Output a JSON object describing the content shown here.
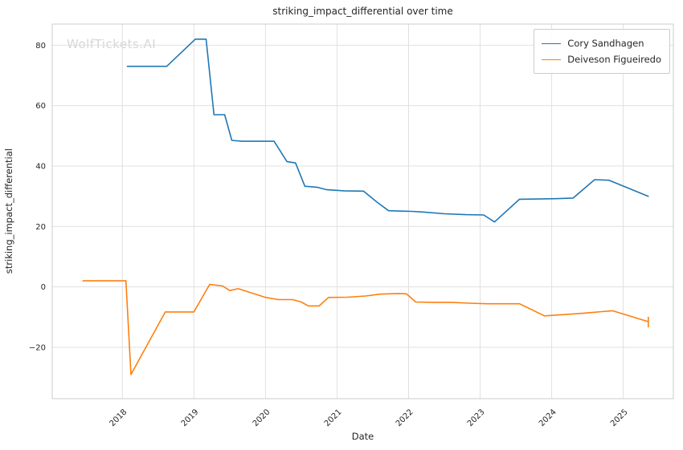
{
  "watermark": "WolfTickets.AI",
  "chart_data": {
    "type": "line",
    "title": "striking_impact_differential over time",
    "xlabel": "Date",
    "ylabel": "striking_impact_differential",
    "xlim": [
      2017.02,
      2025.7
    ],
    "ylim": [
      -37,
      87
    ],
    "xticks": [
      2018,
      2019,
      2020,
      2021,
      2022,
      2023,
      2024,
      2025
    ],
    "yticks": [
      -20,
      0,
      20,
      40,
      60,
      80
    ],
    "grid": true,
    "legend_position": "upper right",
    "colors": {
      "grid": "#e0e0e0",
      "spine": "#cccccc",
      "tick_text": "#262626",
      "background": "#ffffff"
    },
    "series": [
      {
        "name": "Cory Sandhagen",
        "color": "#1f77b4",
        "points": [
          [
            2018.07,
            73
          ],
          [
            2018.62,
            73
          ],
          [
            2019.02,
            82
          ],
          [
            2019.17,
            82
          ],
          [
            2019.28,
            57
          ],
          [
            2019.43,
            57
          ],
          [
            2019.53,
            48.5
          ],
          [
            2019.67,
            48.2
          ],
          [
            2020.12,
            48.2
          ],
          [
            2020.3,
            41.5
          ],
          [
            2020.42,
            41
          ],
          [
            2020.55,
            33.3
          ],
          [
            2020.72,
            33
          ],
          [
            2020.85,
            32.2
          ],
          [
            2021.1,
            31.8
          ],
          [
            2021.37,
            31.7
          ],
          [
            2021.55,
            28.2
          ],
          [
            2021.72,
            25.2
          ],
          [
            2022.05,
            25
          ],
          [
            2022.2,
            24.8
          ],
          [
            2022.5,
            24.2
          ],
          [
            2022.8,
            23.9
          ],
          [
            2023.05,
            23.8
          ],
          [
            2023.2,
            21.5
          ],
          [
            2023.55,
            29
          ],
          [
            2024.05,
            29.2
          ],
          [
            2024.3,
            29.4
          ],
          [
            2024.6,
            35.5
          ],
          [
            2024.8,
            35.3
          ],
          [
            2025.35,
            30
          ]
        ]
      },
      {
        "name": "Deiveson Figueiredo",
        "color": "#ff7f0e",
        "points": [
          [
            2017.45,
            2
          ],
          [
            2018.05,
            2
          ],
          [
            2018.12,
            -29
          ],
          [
            2018.6,
            -8.3
          ],
          [
            2019.0,
            -8.3
          ],
          [
            2019.22,
            0.8
          ],
          [
            2019.4,
            0.3
          ],
          [
            2019.5,
            -1.2
          ],
          [
            2019.62,
            -0.6
          ],
          [
            2020.0,
            -3.5
          ],
          [
            2020.18,
            -4.2
          ],
          [
            2020.38,
            -4.2
          ],
          [
            2020.5,
            -5
          ],
          [
            2020.6,
            -6.3
          ],
          [
            2020.75,
            -6.3
          ],
          [
            2020.88,
            -3.5
          ],
          [
            2021.15,
            -3.4
          ],
          [
            2021.4,
            -3
          ],
          [
            2021.6,
            -2.4
          ],
          [
            2021.85,
            -2.2
          ],
          [
            2021.97,
            -2.3
          ],
          [
            2022.1,
            -5
          ],
          [
            2022.35,
            -5.1
          ],
          [
            2022.6,
            -5.1
          ],
          [
            2022.85,
            -5.4
          ],
          [
            2023.1,
            -5.6
          ],
          [
            2023.35,
            -5.6
          ],
          [
            2023.55,
            -5.6
          ],
          [
            2023.9,
            -9.6
          ],
          [
            2024.15,
            -9.2
          ],
          [
            2024.45,
            -8.7
          ],
          [
            2024.7,
            -8.2
          ],
          [
            2024.85,
            -7.9
          ],
          [
            2025.35,
            -11.5
          ]
        ],
        "end_errorbar": {
          "x": 2025.35,
          "y_low": -13.4,
          "y_high": -9.9
        }
      }
    ]
  }
}
